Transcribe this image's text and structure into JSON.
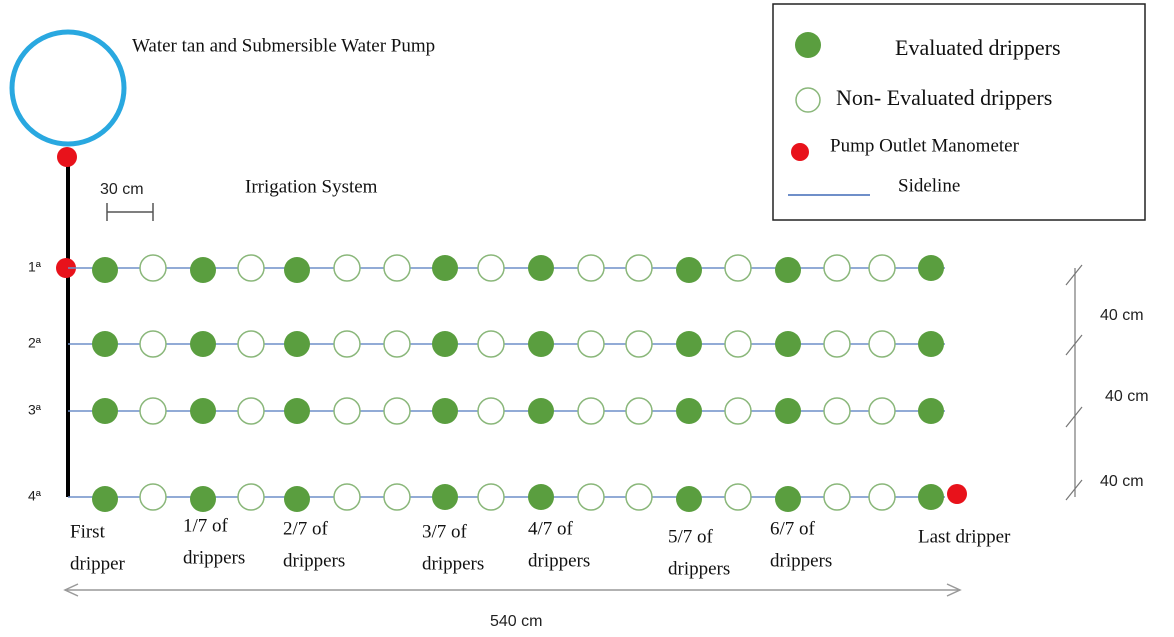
{
  "title": "Water tan and Submersible Water Pump",
  "system_label": "Irrigation System",
  "spacing_label": "30 cm",
  "row_labels": [
    "1ª",
    "2ª",
    "3ª",
    "4ª"
  ],
  "row_spacing_labels": [
    "40 cm",
    "40 cm",
    "40 cm"
  ],
  "length_label": "540 cm",
  "column_labels": [
    [
      "First",
      "dripper"
    ],
    [
      "1/7 of",
      "drippers"
    ],
    [
      "2/7 of",
      "drippers"
    ],
    [
      "3/7 of",
      "drippers"
    ],
    [
      "4/7 of",
      "drippers"
    ],
    [
      "5/7 of",
      "drippers"
    ],
    [
      "6/7 of",
      "drippers"
    ],
    [
      "Last dripper"
    ]
  ],
  "legend": {
    "evaluated": "Evaluated drippers",
    "non_evaluated": "Non- Evaluated drippers",
    "manometer": "Pump Outlet Manometer",
    "sideline": "Sideline"
  }
}
